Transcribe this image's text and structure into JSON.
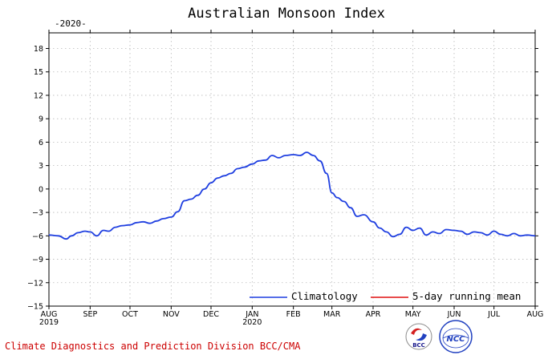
{
  "chart_data": {
    "type": "line",
    "title": "Australian Monsoon Index",
    "year_label": "-2020-",
    "ylim": [
      -15,
      20
    ],
    "yticks": [
      18,
      15,
      12,
      9,
      6,
      3,
      0,
      -3,
      -6,
      -9,
      -12,
      -15
    ],
    "ytick_labels": [
      "18",
      "15",
      "12",
      "9",
      "6",
      "3",
      "0",
      "−3",
      "−6",
      "−9",
      "−12",
      "−15"
    ],
    "xlim": [
      "2019-08-01",
      "2020-08-01"
    ],
    "xticks": [
      {
        "label": "AUG",
        "sub": "2019",
        "date": "2019-08-01"
      },
      {
        "label": "SEP",
        "sub": "",
        "date": "2019-09-01"
      },
      {
        "label": "OCT",
        "sub": "",
        "date": "2019-10-01"
      },
      {
        "label": "NOV",
        "sub": "",
        "date": "2019-11-01"
      },
      {
        "label": "DEC",
        "sub": "",
        "date": "2019-12-01"
      },
      {
        "label": "JAN",
        "sub": "2020",
        "date": "2020-01-01"
      },
      {
        "label": "FEB",
        "sub": "",
        "date": "2020-02-01"
      },
      {
        "label": "MAR",
        "sub": "",
        "date": "2020-03-01"
      },
      {
        "label": "APR",
        "sub": "",
        "date": "2020-04-01"
      },
      {
        "label": "MAY",
        "sub": "",
        "date": "2020-05-01"
      },
      {
        "label": "JUN",
        "sub": "",
        "date": "2020-06-01"
      },
      {
        "label": "JUL",
        "sub": "",
        "date": "2020-07-01"
      },
      {
        "label": "AUG",
        "sub": "",
        "date": "2020-08-01"
      }
    ],
    "grid": true,
    "legend_position": "bottom-right",
    "series": [
      {
        "name": "Climatology",
        "color": "#1f3fe0",
        "x": [
          "2019-08-01",
          "2019-08-08",
          "2019-08-14",
          "2019-08-18",
          "2019-08-23",
          "2019-08-28",
          "2019-09-01",
          "2019-09-06",
          "2019-09-11",
          "2019-09-15",
          "2019-09-20",
          "2019-09-25",
          "2019-10-01",
          "2019-10-06",
          "2019-10-11",
          "2019-10-16",
          "2019-10-21",
          "2019-10-26",
          "2019-11-01",
          "2019-11-06",
          "2019-11-11",
          "2019-11-16",
          "2019-11-21",
          "2019-11-26",
          "2019-12-01",
          "2019-12-06",
          "2019-12-11",
          "2019-12-16",
          "2019-12-21",
          "2019-12-26",
          "2020-01-01",
          "2020-01-06",
          "2020-01-11",
          "2020-01-16",
          "2020-01-21",
          "2020-01-26",
          "2020-02-01",
          "2020-02-06",
          "2020-02-11",
          "2020-02-16",
          "2020-02-21",
          "2020-02-26",
          "2020-03-01",
          "2020-03-05",
          "2020-03-10",
          "2020-03-15",
          "2020-03-20",
          "2020-03-25",
          "2020-04-01",
          "2020-04-06",
          "2020-04-11",
          "2020-04-16",
          "2020-04-21",
          "2020-04-26",
          "2020-05-01",
          "2020-05-06",
          "2020-05-11",
          "2020-05-16",
          "2020-05-21",
          "2020-05-26",
          "2020-06-01",
          "2020-06-06",
          "2020-06-11",
          "2020-06-16",
          "2020-06-21",
          "2020-06-26",
          "2020-07-01",
          "2020-07-06",
          "2020-07-11",
          "2020-07-16",
          "2020-07-21",
          "2020-07-26",
          "2020-08-01"
        ],
        "y": [
          -5.9,
          -6.0,
          -6.4,
          -6.0,
          -5.6,
          -5.4,
          -5.5,
          -6.0,
          -5.3,
          -5.4,
          -4.9,
          -4.7,
          -4.6,
          -4.3,
          -4.2,
          -4.4,
          -4.1,
          -3.8,
          -3.6,
          -2.9,
          -1.5,
          -1.3,
          -0.8,
          0.0,
          0.8,
          1.4,
          1.7,
          2.0,
          2.6,
          2.8,
          3.2,
          3.6,
          3.7,
          4.3,
          4.0,
          4.3,
          4.4,
          4.3,
          4.7,
          4.3,
          3.6,
          2.0,
          -0.5,
          -1.1,
          -1.6,
          -2.4,
          -3.5,
          -3.3,
          -4.2,
          -5.0,
          -5.5,
          -6.1,
          -5.8,
          -4.9,
          -5.3,
          -5.0,
          -5.9,
          -5.5,
          -5.7,
          -5.2,
          -5.3,
          -5.4,
          -5.8,
          -5.5,
          -5.6,
          -5.9,
          -5.4,
          -5.8,
          -6.0,
          -5.7,
          -6.0,
          -5.9,
          -6.0
        ]
      },
      {
        "name": "5-day running mean",
        "color": "#e01010",
        "x": [],
        "y": []
      }
    ]
  },
  "footer": {
    "text": "Climate Diagnostics and Prediction Division  BCC/CMA",
    "logo1": "BCC",
    "logo2": "NCC"
  }
}
